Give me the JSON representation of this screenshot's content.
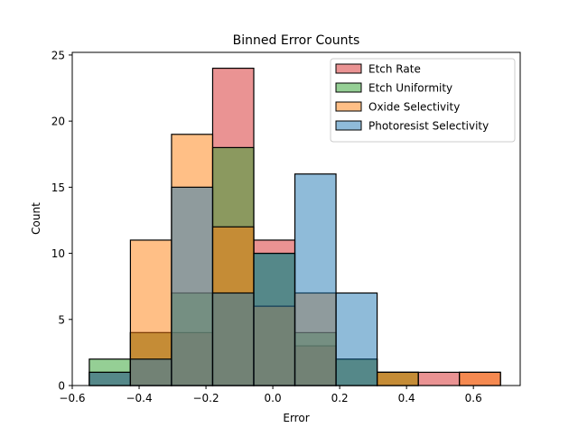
{
  "chart_data": {
    "type": "histogram",
    "title": "Binned Error Counts",
    "xlabel": "Error",
    "ylabel": "Count",
    "xlim": [
      -0.6,
      0.74
    ],
    "ylim": [
      0,
      25.2
    ],
    "xticks": [
      -0.6,
      -0.4,
      -0.2,
      0.0,
      0.2,
      0.4,
      0.6
    ],
    "xtick_labels": [
      "−0.6",
      "−0.4",
      "−0.2",
      "0.0",
      "0.2",
      "0.4",
      "0.6"
    ],
    "yticks": [
      0,
      5,
      10,
      15,
      20,
      25
    ],
    "bin_edges": [
      -0.549,
      -0.426,
      -0.303,
      -0.18,
      -0.057,
      0.066,
      0.189,
      0.312,
      0.435,
      0.558,
      0.681
    ],
    "legend_position": "upper right",
    "grid": false,
    "alpha": 0.5,
    "series": [
      {
        "name": "Etch Rate",
        "color": "#d62728",
        "counts": [
          1,
          4,
          4,
          24,
          11,
          3,
          2,
          1,
          1,
          1
        ]
      },
      {
        "name": "Etch Uniformity",
        "color": "#2ca02c",
        "counts": [
          2,
          4,
          7,
          18,
          10,
          4,
          2,
          1,
          0,
          0
        ]
      },
      {
        "name": "Oxide Selectivity",
        "color": "#ff7f0e",
        "counts": [
          0,
          11,
          19,
          12,
          6,
          7,
          0,
          1,
          0,
          1
        ]
      },
      {
        "name": "Photoresist Selectivity",
        "color": "#1f77b4",
        "counts": [
          1,
          2,
          15,
          7,
          10,
          16,
          7,
          0,
          0,
          0
        ]
      }
    ]
  }
}
